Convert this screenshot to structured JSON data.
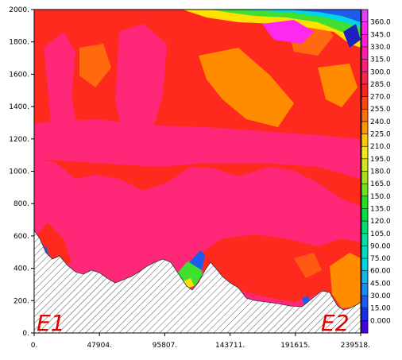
{
  "chart_data": {
    "type": "heatmap",
    "title": "",
    "xlabel": "",
    "ylabel": "",
    "xlim": [
      0,
      239518
    ],
    "ylim": [
      0,
      2000
    ],
    "xticks": [
      "0.",
      "47904.",
      "95807.",
      "143711.",
      "191615.",
      "239518."
    ],
    "yticks": [
      "0.",
      "200.",
      "400.",
      "600.",
      "800.",
      "1000.",
      "1200.",
      "1400.",
      "1600.",
      "1800.",
      "2000."
    ],
    "colorbar": {
      "levels": [
        "0.000",
        "15.00",
        "30.00",
        "45.00",
        "60.00",
        "75.00",
        "90.00",
        "105.0",
        "120.0",
        "135.0",
        "150.0",
        "165.0",
        "180.0",
        "195.0",
        "210.0",
        "225.0",
        "240.0",
        "255.0",
        "270.0",
        "285.0",
        "300.0",
        "315.0",
        "330.0",
        "345.0",
        "360.0"
      ],
      "colors": [
        "#4a00e6",
        "#1b2fe8",
        "#1e5cf0",
        "#1a8cf5",
        "#14b4f0",
        "#00d4e6",
        "#00ddc0",
        "#00e0a0",
        "#00e070",
        "#00e040",
        "#20e020",
        "#70e020",
        "#a8e020",
        "#d0e620",
        "#f0e818",
        "#ffc800",
        "#ff9600",
        "#ff6e10",
        "#ff4610",
        "#ff2020",
        "#ff2450",
        "#ff1e7a",
        "#ff1ea8",
        "#ff20d2",
        "#ff28f0",
        "#e040ff"
      ]
    },
    "section_labels": [
      "E1",
      "E2"
    ],
    "colors": {
      "background": "#ff2878",
      "red": "#ff2a1e",
      "orange_red": "#ff5a14",
      "orange": "#ff8c00",
      "hatch": "#666666"
    }
  }
}
